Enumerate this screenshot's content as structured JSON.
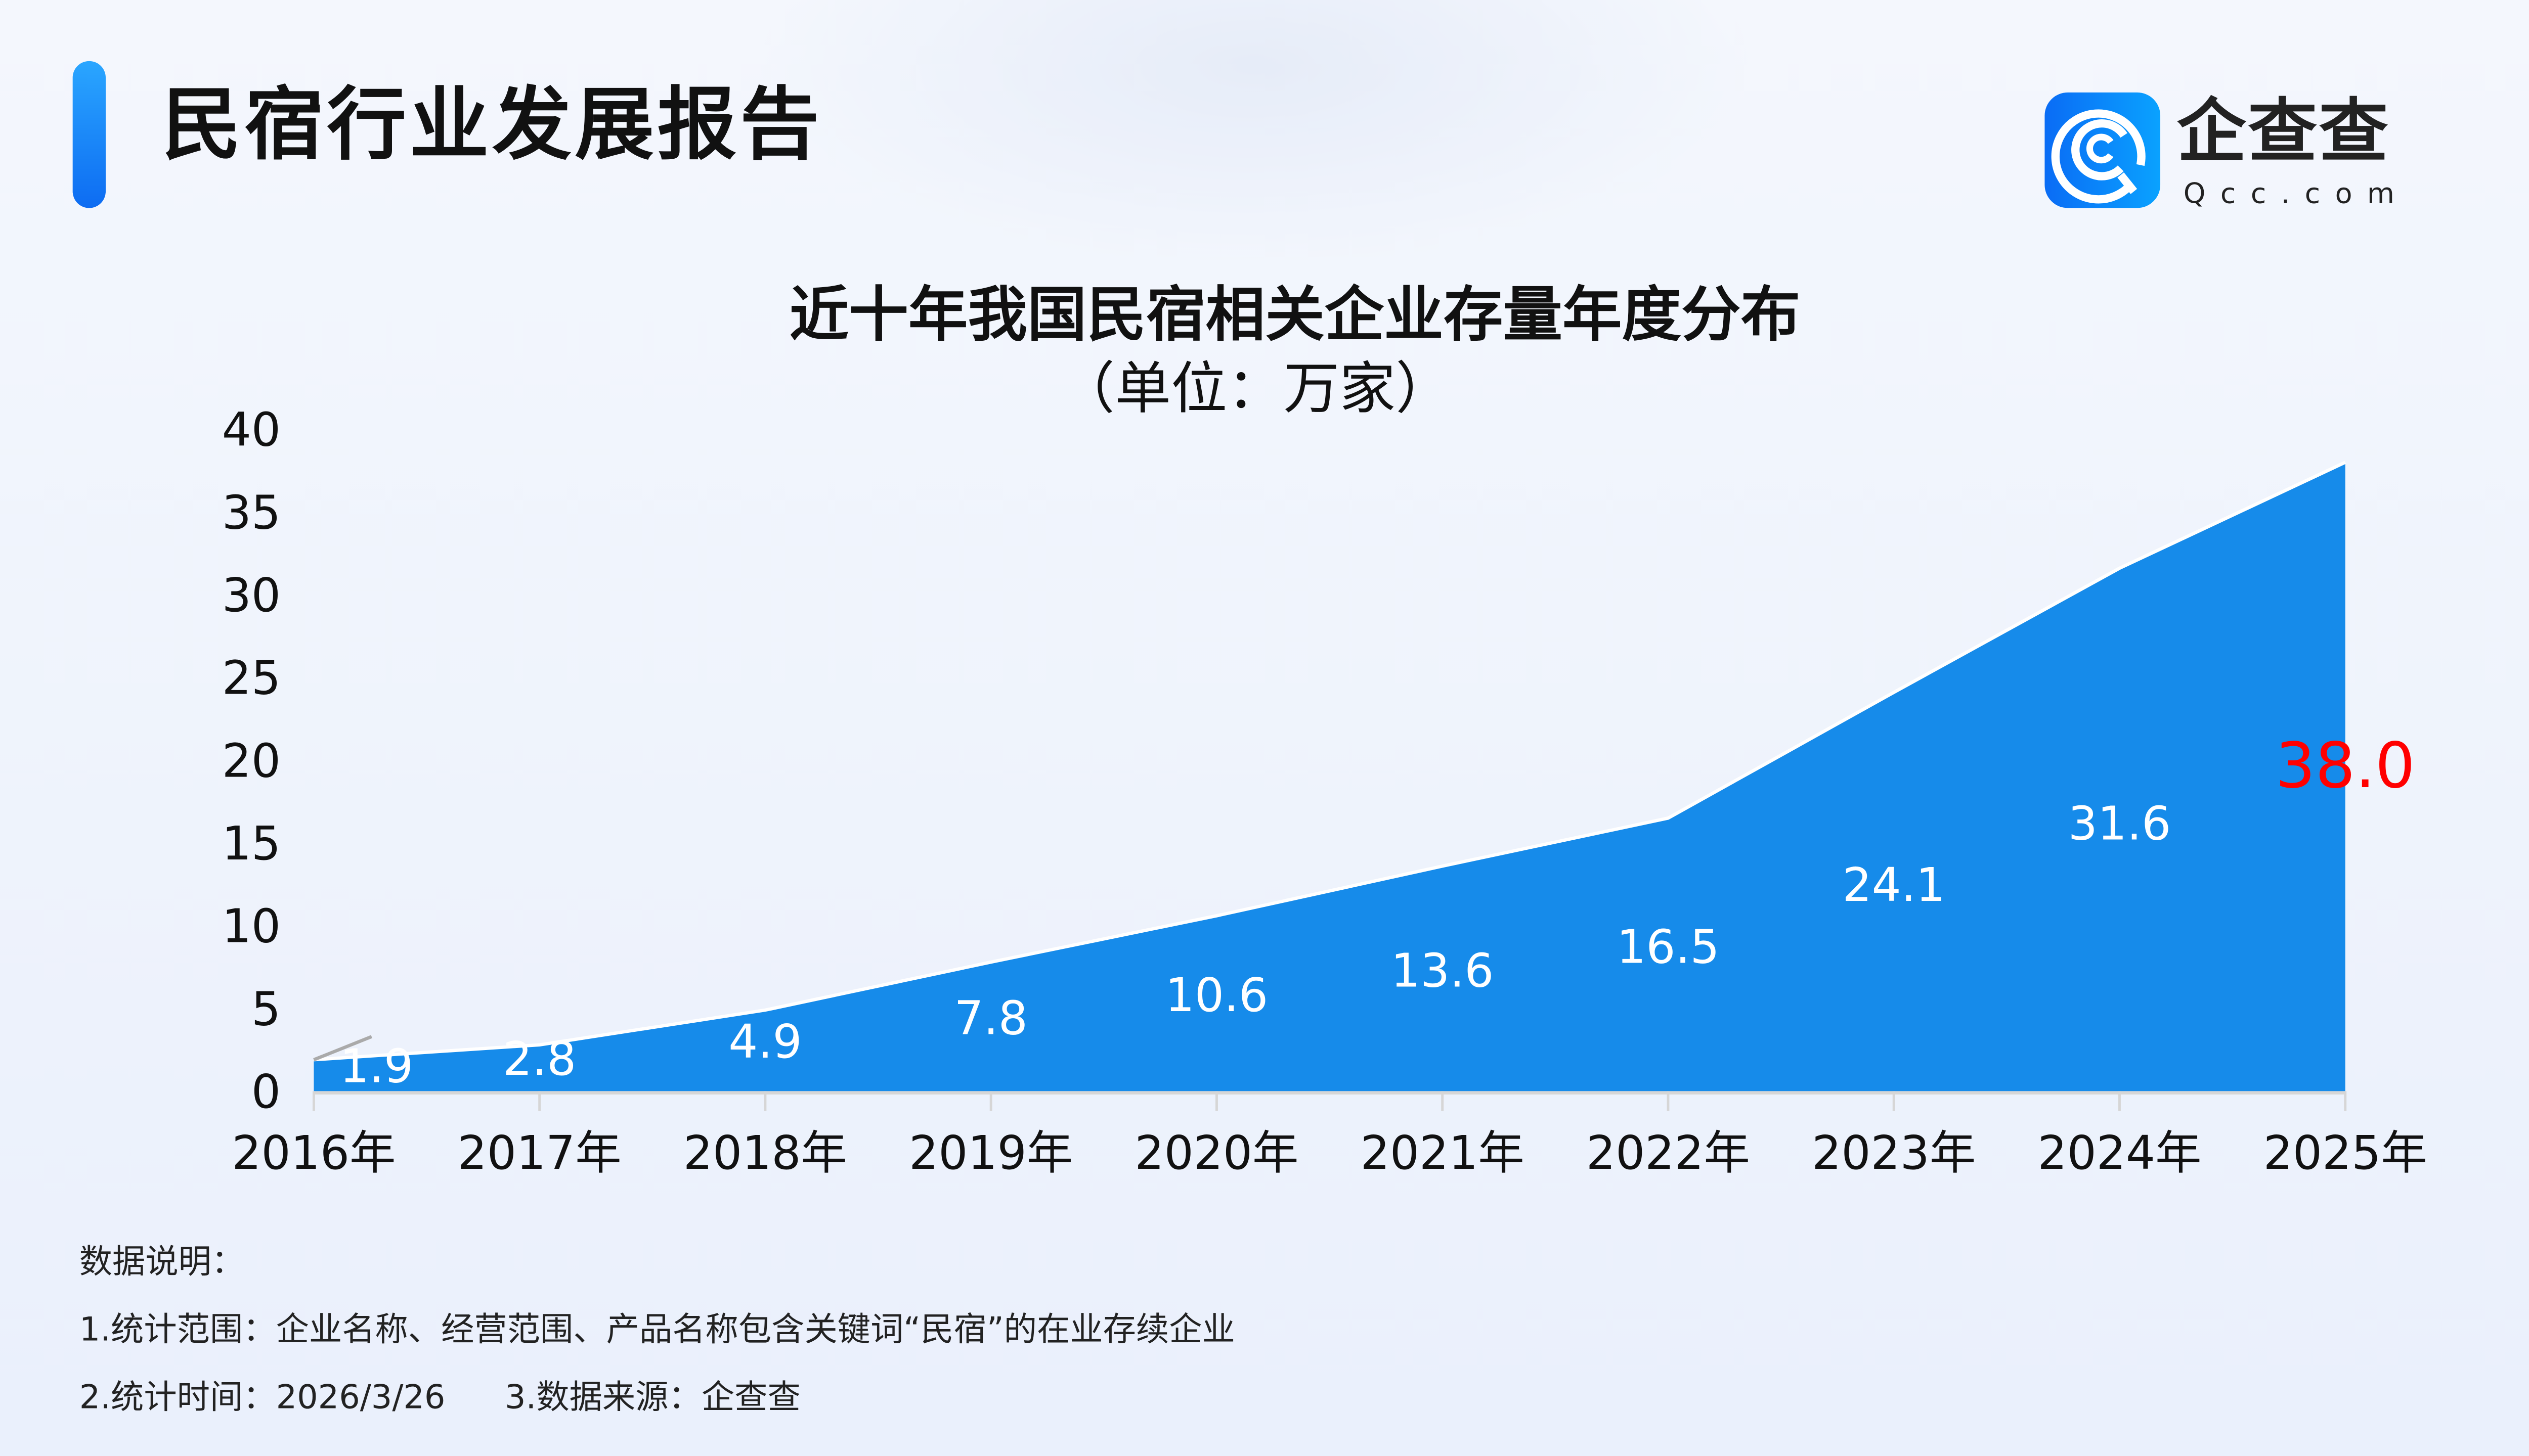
{
  "header": {
    "title": "民宿行业发展报告",
    "accent_color": "#1a8cff"
  },
  "logo": {
    "name_cn": "企查查",
    "name_en": "Qcc.com",
    "icon": "qcc-logo-icon"
  },
  "chart_data": {
    "type": "area",
    "title": "近十年我国民宿相关企业存量年度分布",
    "subtitle": "（单位：万家）",
    "categories": [
      "2016年",
      "2017年",
      "2018年",
      "2019年",
      "2020年",
      "2021年",
      "2022年",
      "2023年",
      "2024年",
      "2025年"
    ],
    "values": [
      1.9,
      2.8,
      4.9,
      7.8,
      10.6,
      13.6,
      16.5,
      24.1,
      31.6,
      38.0
    ],
    "data_labels": [
      "1.9",
      "2.8",
      "4.9",
      "7.8",
      "10.6",
      "13.6",
      "16.5",
      "24.1",
      "31.6",
      "38.0"
    ],
    "highlight_index": 9,
    "ylim": [
      0,
      40
    ],
    "yticks": [
      "0",
      "5",
      "10",
      "15",
      "20",
      "25",
      "30",
      "35",
      "40"
    ],
    "grid": false,
    "area_color": "#168bea",
    "label_color": "#ffffff",
    "highlight_color": "#ff0000"
  },
  "notes": {
    "heading": "数据说明：",
    "line1": "1.统计范围：企业名称、经营范围、产品名称包含关键词“民宿”的在业存续企业",
    "line2a": "2.统计时间：2026/3/26",
    "line2b": "3.数据来源：企查查"
  }
}
